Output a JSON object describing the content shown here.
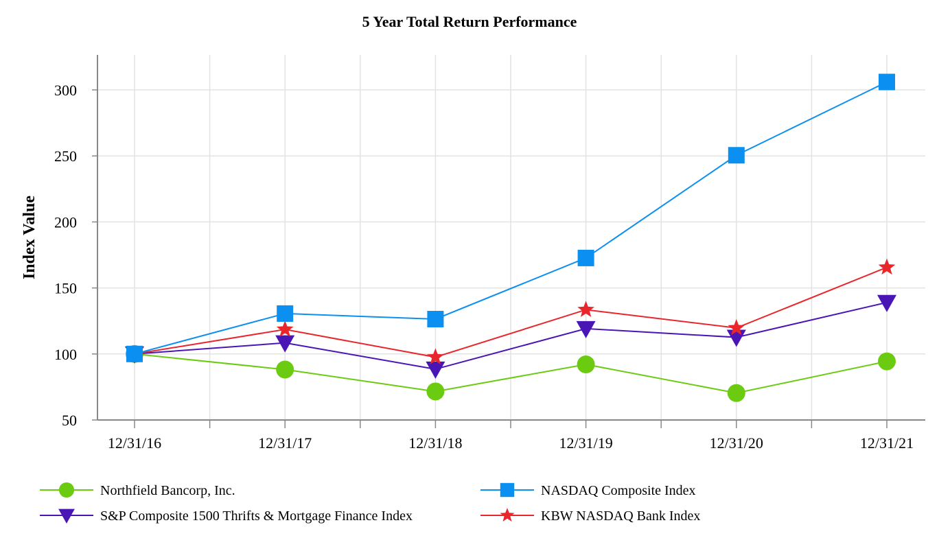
{
  "chart_data": {
    "type": "line",
    "title": "5 Year Total Return Performance",
    "xlabel": "",
    "ylabel": "Index Value",
    "categories": [
      "12/31/16",
      "12/31/17",
      "12/31/18",
      "12/31/19",
      "12/31/20",
      "12/31/21"
    ],
    "ylim": [
      50,
      325
    ],
    "yticks": [
      50,
      100,
      150,
      200,
      250,
      300
    ],
    "grid": true,
    "legend_position": "bottom",
    "series": [
      {
        "name": "Northfield Bancorp, Inc.",
        "color": "#6bcb10",
        "marker": "circle",
        "values": [
          100.0,
          88.2,
          71.6,
          92.1,
          70.4,
          94.4
        ]
      },
      {
        "name": "NASDAQ Composite Index",
        "color": "#0b8ff0",
        "marker": "square",
        "values": [
          100.0,
          130.6,
          126.4,
          172.7,
          250.5,
          306.0
        ]
      },
      {
        "name": "S&P Composite 1500 Thrifts & Mortgage Finance Index",
        "color": "#4a15b5",
        "marker": "triangle-down",
        "values": [
          100.0,
          108.4,
          88.5,
          119.2,
          112.6,
          139.0
        ]
      },
      {
        "name": "KBW NASDAQ Bank Index",
        "color": "#e8262b",
        "marker": "star",
        "values": [
          100.0,
          118.6,
          97.6,
          133.5,
          119.7,
          165.6
        ]
      }
    ]
  }
}
